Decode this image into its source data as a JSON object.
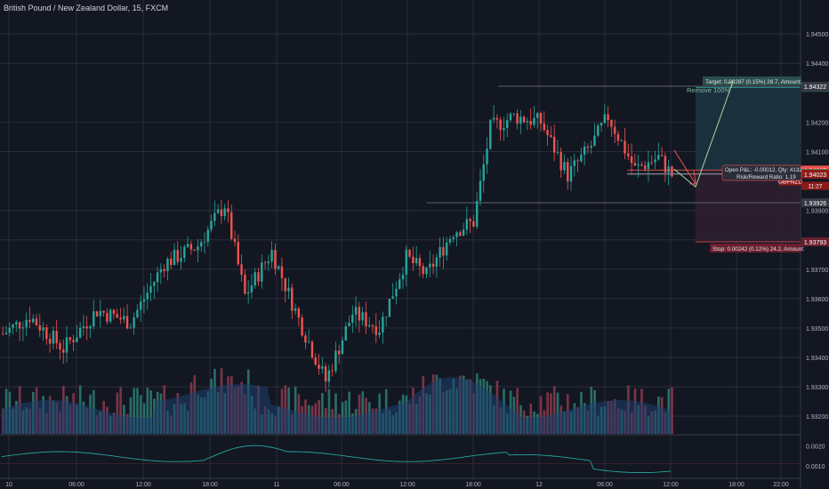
{
  "header": {
    "title": "British Pound / New Zealand Dollar, 15, FXCM"
  },
  "colors": {
    "background": "#131722",
    "grid": "#2a2e39",
    "up": "#26a69a",
    "down": "#ef5350",
    "volume_up": "#2e7d76",
    "volume_down": "#8e3a4e",
    "volume_ma": "#1e3f6e",
    "indicator": "#26a69a",
    "target_zone": "#1c3340",
    "stop_zone": "#2e1f2e",
    "target_tag": "#2b4f4c",
    "stop_tag": "#6b1f2e",
    "symbol_tag": "#8b1b1b",
    "last_tag": "#2e7d32"
  },
  "chart_data": {
    "type": "candlestick",
    "symbol": "GBPNZD",
    "interval": "15",
    "y_axis": {
      "ticks": [
        "1.94500",
        "1.94400",
        "1.94200",
        "1.94100",
        "1.93900",
        "1.93800",
        "1.93700",
        "1.93600",
        "1.93500",
        "1.93400",
        "1.93300",
        "1.93200"
      ],
      "ylim": [
        1.9314,
        1.9457
      ]
    },
    "x_axis": {
      "ticks": [
        "10",
        "06:00",
        "12:00",
        "18:00",
        "11",
        "06:00",
        "12:00",
        "18:00",
        "12",
        "06:00",
        "12:00",
        "18:00",
        "22:00"
      ]
    },
    "price_lines": [
      {
        "label": "1.94318",
        "price": 1.94318,
        "kind": "target"
      },
      {
        "label": "1.94322",
        "price": 1.94322,
        "kind": "neutral"
      },
      {
        "label": "1.94037",
        "price": 1.94037,
        "kind": "down"
      },
      {
        "label": "1.94025",
        "price": 1.94025,
        "kind": "last"
      },
      {
        "label": "1.94023",
        "price": 1.94023,
        "kind": "symbol"
      },
      {
        "label": "1.93926",
        "price": 1.93926,
        "kind": "neutral"
      },
      {
        "label": "1.93793",
        "price": 1.93793,
        "kind": "stop"
      }
    ],
    "symbol_tag": {
      "name": "GBPNZD",
      "value": "1.94023",
      "countdown": "11:27"
    },
    "position": {
      "target_label": "Target: 0.00287 (0.15%) 28.7, Amount:",
      "target_price": 1.94322,
      "entry_price": 1.94035,
      "stop_label": "Stop: 0.00242 (0.12%) 24.2, Amount:",
      "stop_price": 1.93793,
      "open_pl": "Open P&L: -0.00012, Qty: 4132",
      "risk_reward": "Risk/Reward Ratio: 1.19",
      "note": "Remove 100%"
    },
    "indicator": {
      "ticks": [
        "0.0020",
        "0.0010"
      ],
      "ylim": [
        0.0005,
        0.0025
      ]
    }
  }
}
